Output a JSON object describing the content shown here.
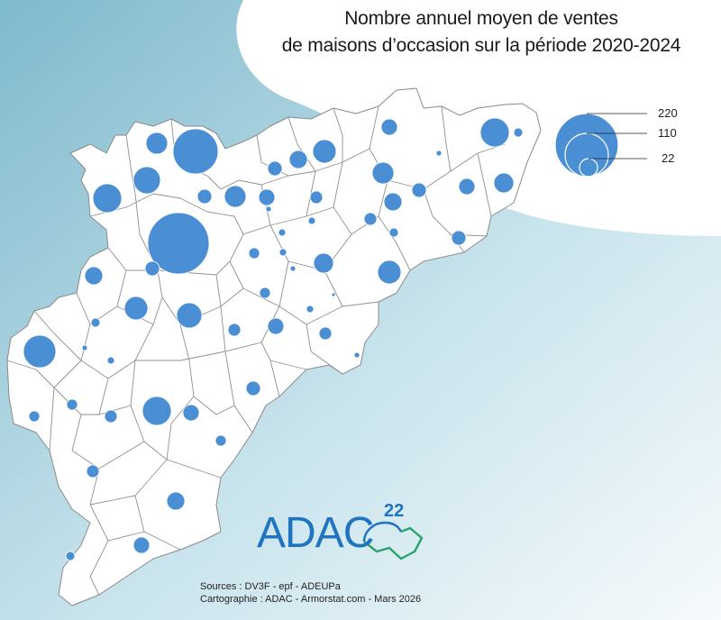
{
  "title": {
    "line1": "Nombre annuel moyen de ventes",
    "line2": "de maisons d’occasion sur la période 2020-2024"
  },
  "legend": {
    "values": [
      "220",
      "110",
      "22"
    ]
  },
  "logo": {
    "text": "ADAC",
    "number": "22"
  },
  "sources": {
    "line1": "Sources : DV3F - epf - ADEUPa",
    "line2": "Cartographie : ADAC - Armorstat.com - Mars 2026"
  },
  "colors": {
    "symbol_fill": "#4a8fd4",
    "commune_fill": "#ffffff",
    "commune_stroke": "#8a8a8a",
    "sea_gradient_start": "#8fc4d6",
    "sea_gradient_end": "#f2f7fa",
    "logo_blue": "#1f73bf",
    "logo_green": "#2aa36b"
  }
}
